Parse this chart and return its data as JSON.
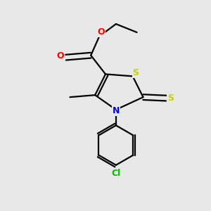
{
  "bg_color": "#e8e8e8",
  "atom_colors": {
    "O": "#ff0000",
    "N": "#0000ff",
    "S": "#cccc00",
    "Cl": "#00bb00",
    "C": "#000000"
  },
  "bond_color": "#000000",
  "bond_width": 1.6,
  "figsize": [
    3.0,
    3.0
  ],
  "dpi": 100
}
